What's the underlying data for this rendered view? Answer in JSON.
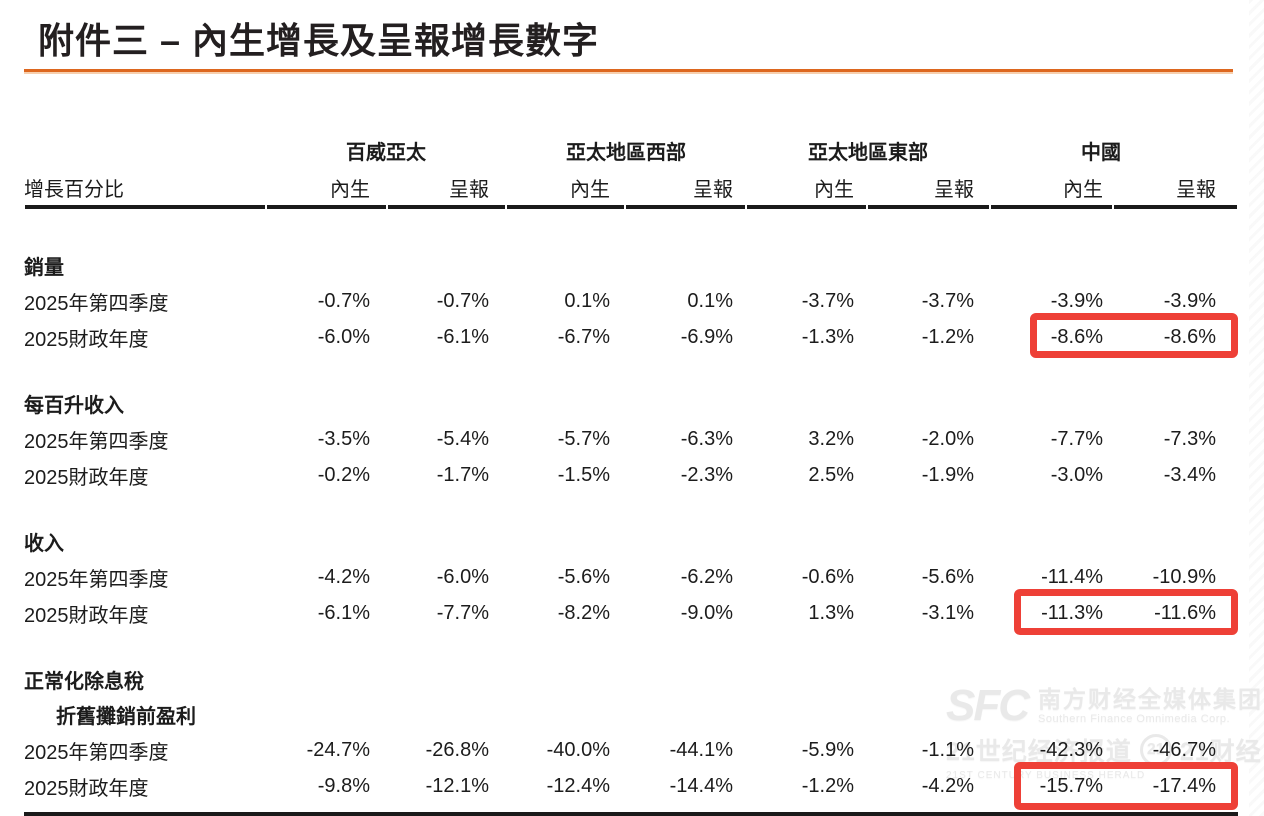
{
  "page": {
    "title": "附件三 – 內生增長及呈報增長數字"
  },
  "table": {
    "row_header": "增長百分比",
    "groups": [
      "百威亞太",
      "亞太地區西部",
      "亞太地區東部",
      "中國"
    ],
    "sub_headers": [
      "內生",
      "呈報",
      "內生",
      "呈報",
      "內生",
      "呈報",
      "內生",
      "呈報"
    ],
    "sections": [
      {
        "title_lines": [
          "銷量"
        ],
        "rows": [
          {
            "label": "2025年第四季度",
            "values": [
              "-0.7%",
              "-0.7%",
              "0.1%",
              "0.1%",
              "-3.7%",
              "-3.7%",
              "-3.9%",
              "-3.9%"
            ]
          },
          {
            "label": "2025財政年度",
            "values": [
              "-6.0%",
              "-6.1%",
              "-6.7%",
              "-6.9%",
              "-1.3%",
              "-1.2%",
              "-8.6%",
              "-8.6%"
            ],
            "highlighted": true
          }
        ]
      },
      {
        "title_lines": [
          "每百升收入"
        ],
        "rows": [
          {
            "label": "2025年第四季度",
            "values": [
              "-3.5%",
              "-5.4%",
              "-5.7%",
              "-6.3%",
              "3.2%",
              "-2.0%",
              "-7.7%",
              "-7.3%"
            ]
          },
          {
            "label": "2025財政年度",
            "values": [
              "-0.2%",
              "-1.7%",
              "-1.5%",
              "-2.3%",
              "2.5%",
              "-1.9%",
              "-3.0%",
              "-3.4%"
            ]
          }
        ]
      },
      {
        "title_lines": [
          "收入"
        ],
        "rows": [
          {
            "label": "2025年第四季度",
            "values": [
              "-4.2%",
              "-6.0%",
              "-5.6%",
              "-6.2%",
              "-0.6%",
              "-5.6%",
              "-11.4%",
              "-10.9%"
            ]
          },
          {
            "label": "2025財政年度",
            "values": [
              "-6.1%",
              "-7.7%",
              "-8.2%",
              "-9.0%",
              "1.3%",
              "-3.1%",
              "-11.3%",
              "-11.6%"
            ],
            "highlighted": true
          }
        ]
      },
      {
        "title_lines": [
          "正常化除息稅",
          "折舊攤銷前盈利"
        ],
        "rows": [
          {
            "label": "2025年第四季度",
            "values": [
              "-24.7%",
              "-26.8%",
              "-40.0%",
              "-44.1%",
              "-5.9%",
              "-1.1%",
              "-42.3%",
              "-46.7%"
            ]
          },
          {
            "label": "2025財政年度",
            "values": [
              "-9.8%",
              "-12.1%",
              "-12.4%",
              "-14.4%",
              "-1.2%",
              "-4.2%",
              "-15.7%",
              "-17.4%"
            ],
            "highlighted": true
          }
        ]
      }
    ]
  },
  "colors": {
    "accent_rule": "#DD671F",
    "header_rule": "#1A1A1A",
    "highlight_red": "#EE4037",
    "text": "#1C1C1C"
  },
  "watermark": {
    "logo": "SFC",
    "line1_cn": "南方财经全媒体集团",
    "line1_en": "Southern Finance Omnimedia Corp.",
    "line2_left": "21世纪经济报道",
    "badge": "21",
    "line2_right": "21财经",
    "line2_en": "21ST CENTURY BUSINESS HERALD"
  }
}
